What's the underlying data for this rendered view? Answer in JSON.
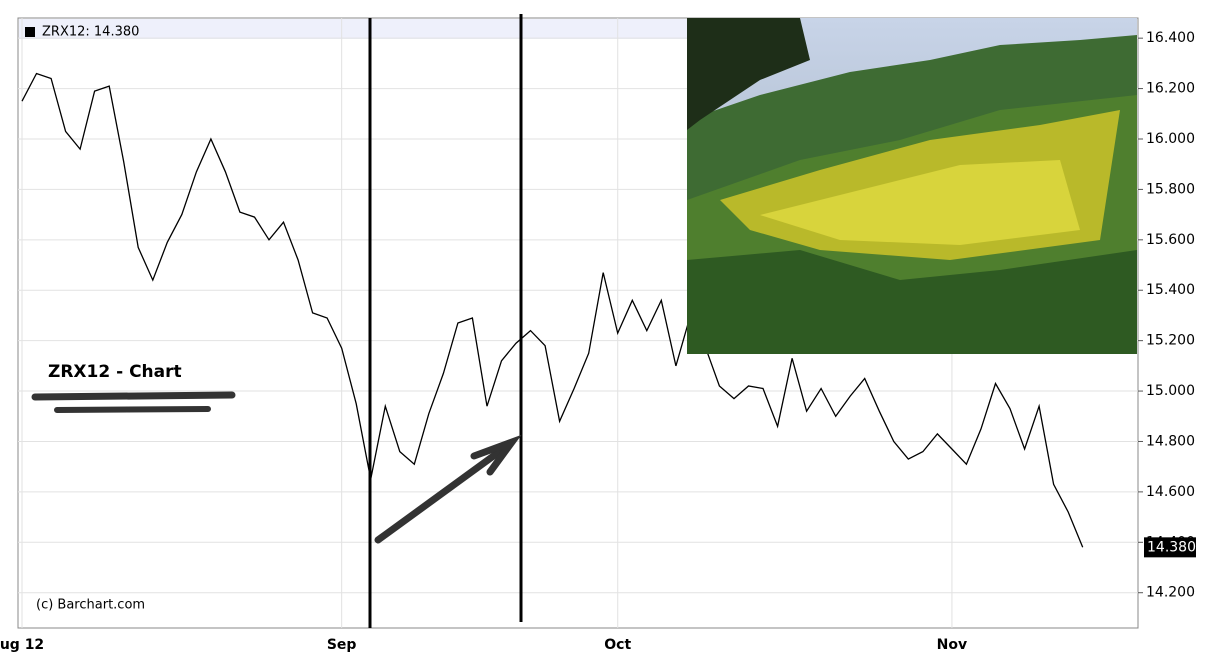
{
  "chart_data": {
    "type": "line",
    "series": [
      {
        "name": "ZRX12: 14.380",
        "color": "#000000",
        "values": [
          16.15,
          16.26,
          16.24,
          16.03,
          15.96,
          16.19,
          16.21,
          15.91,
          15.57,
          15.44,
          15.59,
          15.7,
          15.87,
          16.0,
          15.87,
          15.71,
          15.69,
          15.6,
          15.67,
          15.52,
          15.31,
          15.29,
          15.17,
          14.95,
          14.65,
          14.94,
          14.76,
          14.71,
          14.91,
          15.07,
          15.27,
          15.29,
          14.94,
          15.12,
          15.19,
          15.24,
          15.18,
          14.88,
          15.01,
          15.15,
          15.47,
          15.23,
          15.36,
          15.24,
          15.36,
          15.1,
          15.3,
          15.18,
          15.02,
          14.97,
          15.02,
          15.01,
          14.86,
          15.13,
          14.92,
          15.01,
          14.9,
          14.98,
          15.05,
          14.92,
          14.8,
          14.73,
          14.76,
          14.83,
          14.77,
          14.71,
          14.85,
          15.03,
          14.93,
          14.77,
          14.94,
          14.63,
          14.52,
          14.38
        ],
        "value_labels": [
          null,
          null,
          null,
          null,
          null,
          null,
          null,
          null,
          null,
          null,
          null,
          null,
          null,
          null,
          null,
          null,
          null,
          null,
          null,
          null,
          null,
          null,
          null,
          null,
          null,
          null,
          null,
          null,
          null,
          null,
          null,
          null,
          null,
          null,
          null,
          null,
          null,
          null,
          null,
          null,
          null,
          null,
          null,
          null,
          null,
          null,
          null,
          null,
          null,
          null,
          null,
          null,
          null,
          null,
          null,
          null,
          null,
          null,
          null,
          null,
          null,
          null,
          null,
          null,
          null,
          null,
          null,
          null,
          null,
          null,
          null,
          null,
          null,
          "14.380"
        ]
      }
    ],
    "categories": [
      "ug 12",
      null,
      null,
      null,
      null,
      null,
      null,
      null,
      null,
      null,
      null,
      null,
      null,
      null,
      null,
      null,
      null,
      null,
      null,
      null,
      null,
      null,
      "Sep",
      null,
      null,
      null,
      null,
      null,
      null,
      null,
      null,
      null,
      null,
      null,
      null,
      null,
      null,
      null,
      null,
      null,
      null,
      "Oct",
      null,
      null,
      null,
      null,
      null,
      null,
      null,
      null,
      null,
      null,
      null,
      null,
      null,
      null,
      null,
      null,
      null,
      null,
      null,
      null,
      null,
      null,
      "Nov",
      null,
      null,
      null,
      null,
      null,
      null,
      null,
      null,
      null
    ],
    "ylim": [
      14.06,
      16.48
    ],
    "yticks": [
      {
        "value": 14.2,
        "label": "14.200"
      },
      {
        "value": 14.4,
        "label": "14.400"
      },
      {
        "value": 14.6,
        "label": "14.600"
      },
      {
        "value": 14.8,
        "label": "14.800"
      },
      {
        "value": 15.0,
        "label": "15.000"
      },
      {
        "value": 15.2,
        "label": "15.200"
      },
      {
        "value": 15.4,
        "label": "15.400"
      },
      {
        "value": 15.6,
        "label": "15.600"
      },
      {
        "value": 15.8,
        "label": "15.800"
      },
      {
        "value": 16.0,
        "label": "16.000"
      },
      {
        "value": 16.2,
        "label": "16.200"
      },
      {
        "value": 16.4,
        "label": "16.400"
      }
    ],
    "grid": true,
    "annotations": [
      "ZRX12 - Chart",
      "(c) Barchart.com"
    ]
  }
}
